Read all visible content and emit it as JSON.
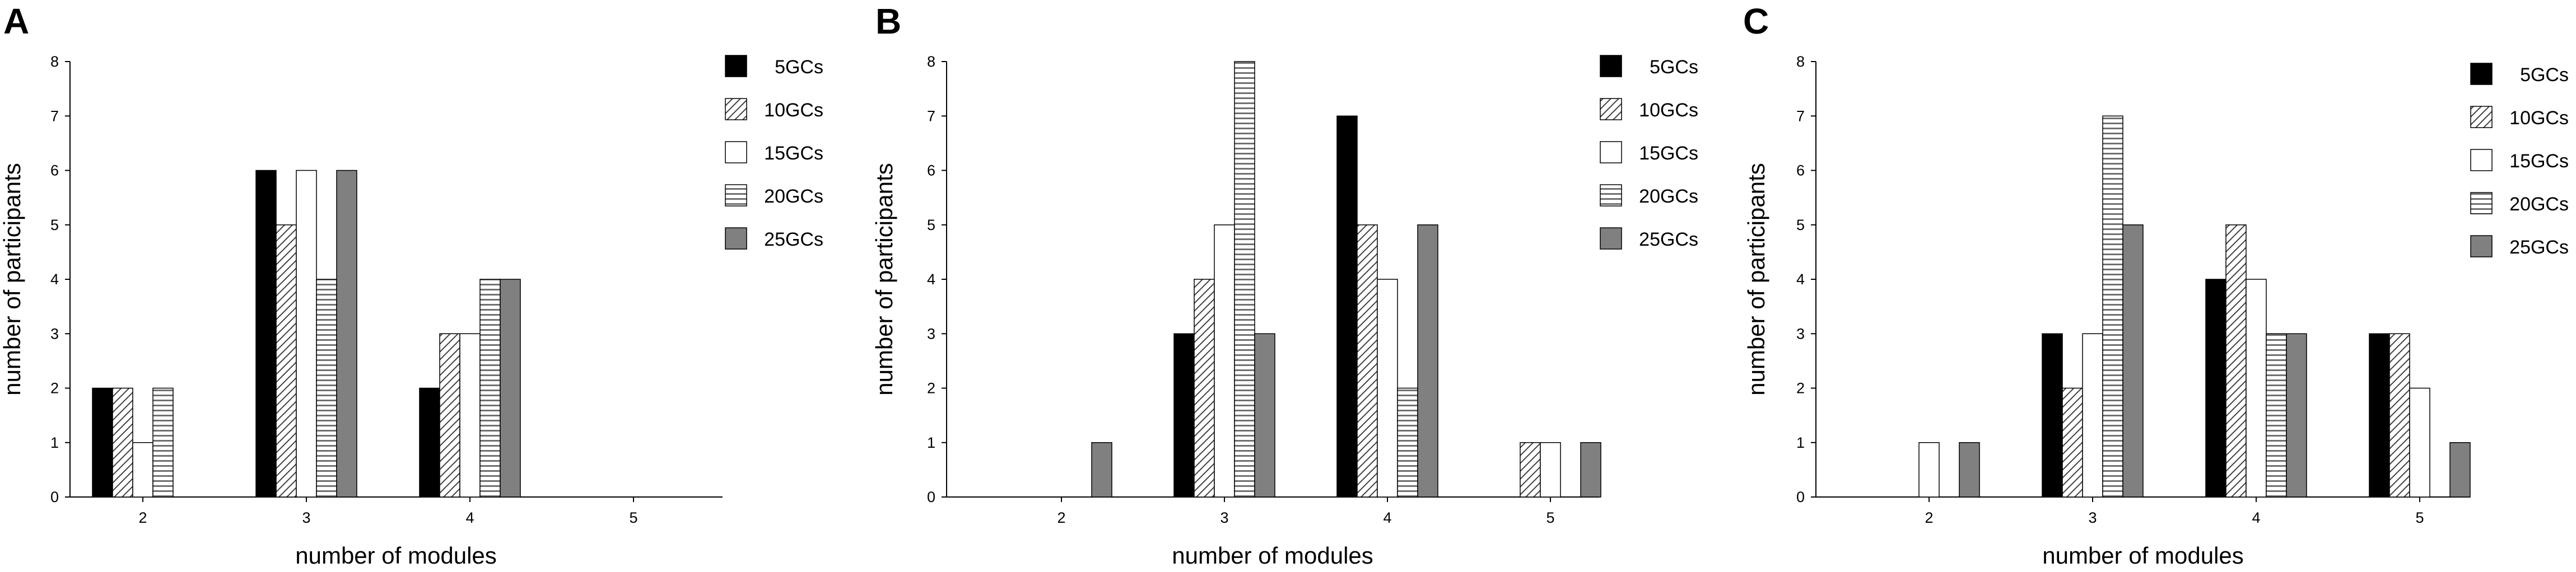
{
  "figure": {
    "colors": {
      "5GCs": "#000000",
      "10GCs": "hatch-diagonal",
      "15GCs": "#ffffff",
      "20GCs": "hatch-horizontal",
      "25GCs": "#808080"
    }
  },
  "chart_data": [
    {
      "panel": "A",
      "type": "bar",
      "xlabel": "number of modules",
      "ylabel": "number of participants",
      "categories": [
        "2",
        "3",
        "4",
        "5"
      ],
      "ylim": [
        0,
        8
      ],
      "yticks": [
        "0",
        "1",
        "2",
        "3",
        "4",
        "5",
        "6",
        "7",
        "8"
      ],
      "legend_position": "top-right",
      "series": [
        {
          "name": "5GCs",
          "values": [
            2,
            6,
            2,
            0
          ]
        },
        {
          "name": "10GCs",
          "values": [
            2,
            5,
            3,
            0
          ]
        },
        {
          "name": "15GCs",
          "values": [
            1,
            6,
            3,
            0
          ]
        },
        {
          "name": "20GCs",
          "values": [
            2,
            4,
            4,
            0
          ]
        },
        {
          "name": "25GCs",
          "values": [
            0,
            6,
            4,
            0
          ]
        }
      ]
    },
    {
      "panel": "B",
      "type": "bar",
      "xlabel": "number of modules",
      "ylabel": "number of participants",
      "categories": [
        "2",
        "3",
        "4",
        "5"
      ],
      "ylim": [
        0,
        8
      ],
      "yticks": [
        "0",
        "1",
        "2",
        "3",
        "4",
        "5",
        "6",
        "7",
        "8"
      ],
      "legend_position": "top-right",
      "series": [
        {
          "name": "5GCs",
          "values": [
            0,
            3,
            7,
            0
          ]
        },
        {
          "name": "10GCs",
          "values": [
            0,
            4,
            5,
            1
          ]
        },
        {
          "name": "15GCs",
          "values": [
            0,
            5,
            4,
            1
          ]
        },
        {
          "name": "20GCs",
          "values": [
            0,
            8,
            2,
            0
          ]
        },
        {
          "name": "25GCs",
          "values": [
            1,
            3,
            5,
            1
          ]
        }
      ]
    },
    {
      "panel": "C",
      "type": "bar",
      "xlabel": "number of modules",
      "ylabel": "number of participants",
      "categories": [
        "2",
        "3",
        "4",
        "5"
      ],
      "ylim": [
        0,
        8
      ],
      "yticks": [
        "0",
        "1",
        "2",
        "3",
        "4",
        "5",
        "6",
        "7",
        "8"
      ],
      "legend_position": "top-right",
      "series": [
        {
          "name": "5GCs",
          "values": [
            0,
            3,
            4,
            3
          ]
        },
        {
          "name": "10GCs",
          "values": [
            0,
            2,
            5,
            3
          ]
        },
        {
          "name": "15GCs",
          "values": [
            1,
            3,
            4,
            2
          ]
        },
        {
          "name": "20GCs",
          "values": [
            0,
            7,
            3,
            0
          ]
        },
        {
          "name": "25GCs",
          "values": [
            1,
            5,
            3,
            1
          ]
        }
      ]
    }
  ]
}
